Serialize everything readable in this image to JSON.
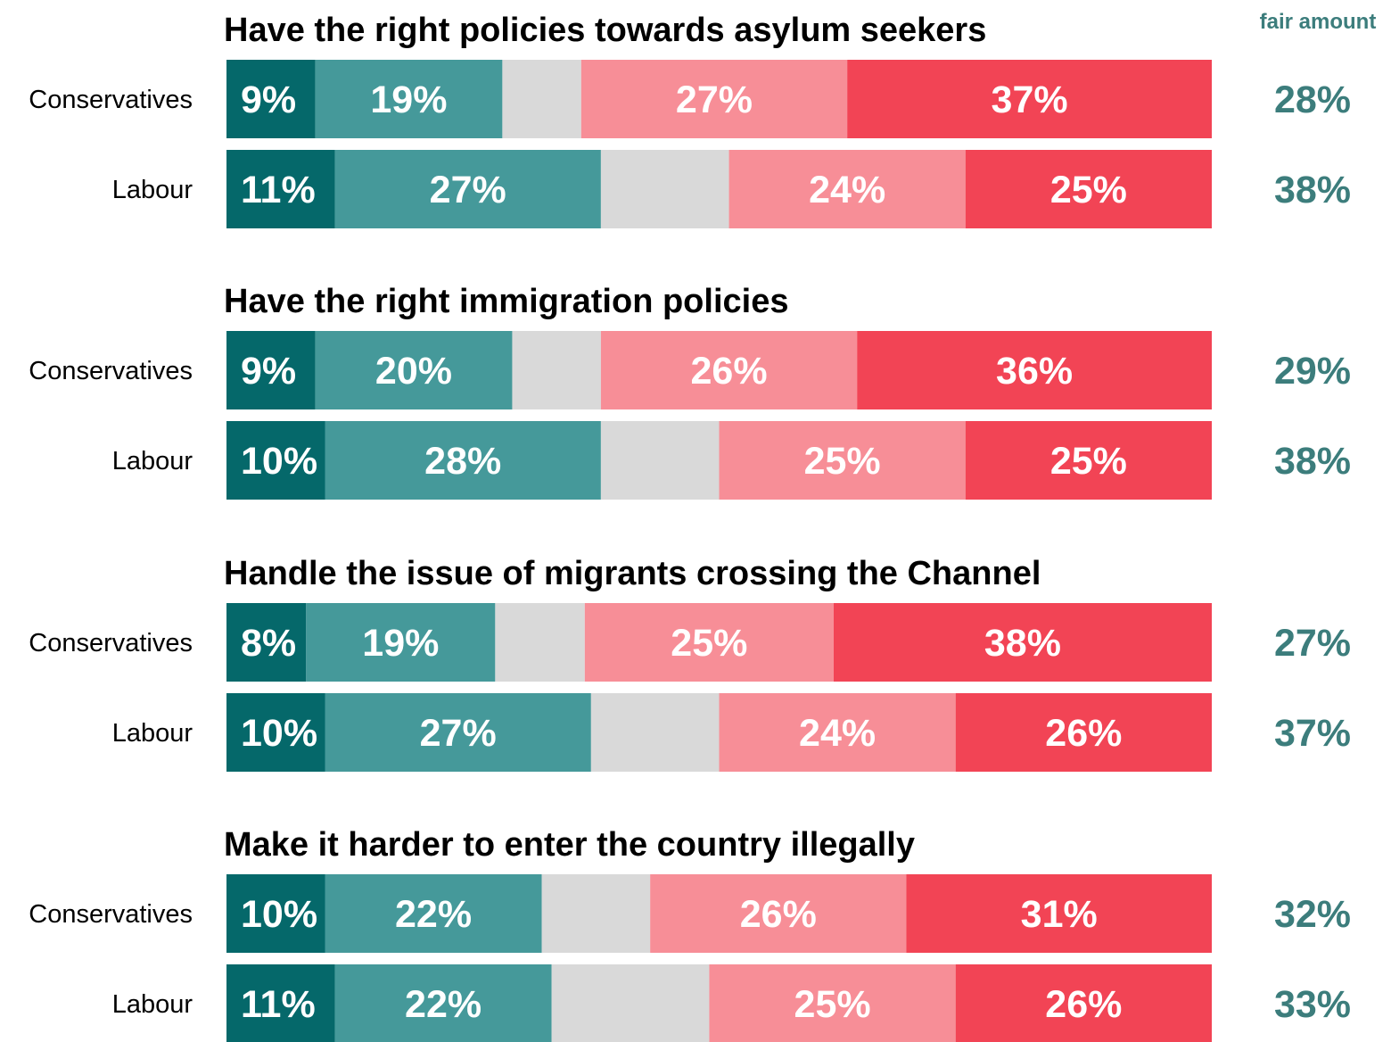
{
  "colors": {
    "great_deal": "#05686a",
    "fair_amount": "#45999a",
    "dont_know": "#d9d9d9",
    "not_very_much": "#f78e97",
    "not_at_all": "#f24455",
    "net_text": "#3c7d7c"
  },
  "corner_label": "fair amount",
  "chart_data": {
    "type": "bar",
    "orientation": "horizontal",
    "stacked": true,
    "xlim": [
      0,
      100
    ],
    "panels": [
      {
        "title": "Have the right policies towards asylum seekers",
        "rows": [
          {
            "party": "Conservatives",
            "values": [
              9,
              19,
              8,
              27,
              37
            ],
            "labels": [
              "9%",
              "19%",
              "",
              "27%",
              "37%"
            ],
            "net": "28%"
          },
          {
            "party": "Labour",
            "values": [
              11,
              27,
              13,
              24,
              25
            ],
            "labels": [
              "11%",
              "27%",
              "",
              "24%",
              "25%"
            ],
            "net": "38%"
          }
        ]
      },
      {
        "title": "Have the right immigration policies",
        "rows": [
          {
            "party": "Conservatives",
            "values": [
              9,
              20,
              9,
              26,
              36
            ],
            "labels": [
              "9%",
              "20%",
              "",
              "26%",
              "36%"
            ],
            "net": "29%"
          },
          {
            "party": "Labour",
            "values": [
              10,
              28,
              12,
              25,
              25
            ],
            "labels": [
              "10%",
              "28%",
              "",
              "25%",
              "25%"
            ],
            "net": "38%"
          }
        ]
      },
      {
        "title": "Handle the issue of migrants crossing the Channel",
        "rows": [
          {
            "party": "Conservatives",
            "values": [
              8,
              19,
              9,
              25,
              38
            ],
            "labels": [
              "8%",
              "19%",
              "",
              "25%",
              "38%"
            ],
            "net": "27%"
          },
          {
            "party": "Labour",
            "values": [
              10,
              27,
              13,
              24,
              26
            ],
            "labels": [
              "10%",
              "27%",
              "",
              "24%",
              "26%"
            ],
            "net": "37%"
          }
        ]
      },
      {
        "title": "Make it harder to enter the country illegally",
        "rows": [
          {
            "party": "Conservatives",
            "values": [
              10,
              22,
              11,
              26,
              31
            ],
            "labels": [
              "10%",
              "22%",
              "",
              "26%",
              "31%"
            ],
            "net": "32%"
          },
          {
            "party": "Labour",
            "values": [
              11,
              22,
              16,
              25,
              26
            ],
            "labels": [
              "11%",
              "22%",
              "",
              "25%",
              "26%"
            ],
            "net": "33%"
          }
        ]
      }
    ]
  }
}
